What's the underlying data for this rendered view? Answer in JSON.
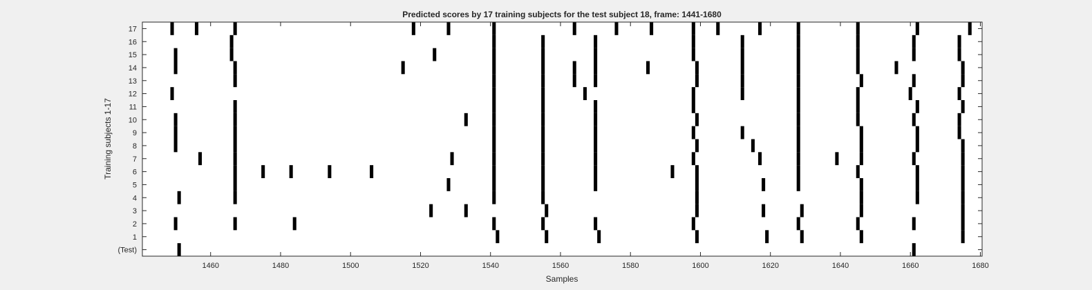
{
  "chart_data": {
    "type": "heatmap",
    "title": "Predicted scores by 17 training subjects for the test subject 18, frame: 1441-1680",
    "xlabel": "Samples",
    "ylabel": "Training subjects 1-17",
    "xlim": [
      1441,
      1680
    ],
    "x_ticks": [
      1460,
      1480,
      1500,
      1520,
      1540,
      1560,
      1580,
      1600,
      1620,
      1640,
      1660,
      1680
    ],
    "row_labels": [
      "(Test)",
      "1",
      "2",
      "3",
      "4",
      "5",
      "6",
      "7",
      "8",
      "9",
      "10",
      "11",
      "12",
      "13",
      "14",
      "15",
      "16",
      "17"
    ],
    "colors": {
      "background": "#f0f0f0",
      "plot_bg": "#ffffff",
      "mark": "#000000",
      "axis": "#262626",
      "text": "#262626"
    },
    "rows": [
      {
        "label": "(Test)",
        "x": [
          1451,
          1661
        ]
      },
      {
        "label": "1",
        "x": [
          1542,
          1556,
          1571,
          1599,
          1619,
          1629,
          1646,
          1675
        ]
      },
      {
        "label": "2",
        "x": [
          1450,
          1467,
          1484,
          1541,
          1555,
          1570,
          1598,
          1628,
          1645,
          1661,
          1675
        ]
      },
      {
        "label": "3",
        "x": [
          1523,
          1533,
          1556,
          1599,
          1618,
          1629,
          1646,
          1675
        ]
      },
      {
        "label": "4",
        "x": [
          1451,
          1467,
          1541,
          1555,
          1599,
          1646,
          1662,
          1675
        ]
      },
      {
        "label": "5",
        "x": [
          1467,
          1528,
          1541,
          1555,
          1570,
          1599,
          1618,
          1628,
          1646,
          1662,
          1675
        ]
      },
      {
        "label": "6",
        "x": [
          1467,
          1475,
          1483,
          1494,
          1506,
          1541,
          1555,
          1570,
          1592,
          1599,
          1628,
          1645,
          1662,
          1675
        ]
      },
      {
        "label": "7",
        "x": [
          1457,
          1467,
          1529,
          1541,
          1555,
          1570,
          1598,
          1617,
          1628,
          1639,
          1646,
          1661,
          1675
        ]
      },
      {
        "label": "8",
        "x": [
          1450,
          1467,
          1541,
          1555,
          1570,
          1599,
          1615,
          1628,
          1646,
          1662,
          1675
        ]
      },
      {
        "label": "9",
        "x": [
          1450,
          1467,
          1541,
          1555,
          1570,
          1598,
          1612,
          1628,
          1646,
          1662,
          1674
        ]
      },
      {
        "label": "10",
        "x": [
          1450,
          1467,
          1533,
          1541,
          1555,
          1570,
          1599,
          1628,
          1645,
          1661,
          1674
        ]
      },
      {
        "label": "11",
        "x": [
          1467,
          1541,
          1555,
          1570,
          1598,
          1628,
          1645,
          1662,
          1675
        ]
      },
      {
        "label": "12",
        "x": [
          1449,
          1541,
          1555,
          1567,
          1598,
          1612,
          1628,
          1645,
          1660,
          1674
        ]
      },
      {
        "label": "13",
        "x": [
          1467,
          1541,
          1555,
          1564,
          1570,
          1599,
          1612,
          1628,
          1646,
          1661,
          1675
        ]
      },
      {
        "label": "14",
        "x": [
          1450,
          1467,
          1515,
          1541,
          1555,
          1564,
          1570,
          1585,
          1599,
          1612,
          1628,
          1645,
          1656,
          1675
        ]
      },
      {
        "label": "15",
        "x": [
          1450,
          1466,
          1524,
          1541,
          1555,
          1570,
          1598,
          1612,
          1628,
          1645,
          1661,
          1674
        ]
      },
      {
        "label": "16",
        "x": [
          1466,
          1541,
          1555,
          1570,
          1598,
          1612,
          1628,
          1645,
          1661,
          1674
        ]
      },
      {
        "label": "17",
        "x": [
          1449,
          1456,
          1467,
          1518,
          1528,
          1541,
          1564,
          1576,
          1586,
          1598,
          1605,
          1617,
          1628,
          1645,
          1662,
          1677
        ]
      }
    ],
    "grid": false,
    "legend": "none"
  }
}
